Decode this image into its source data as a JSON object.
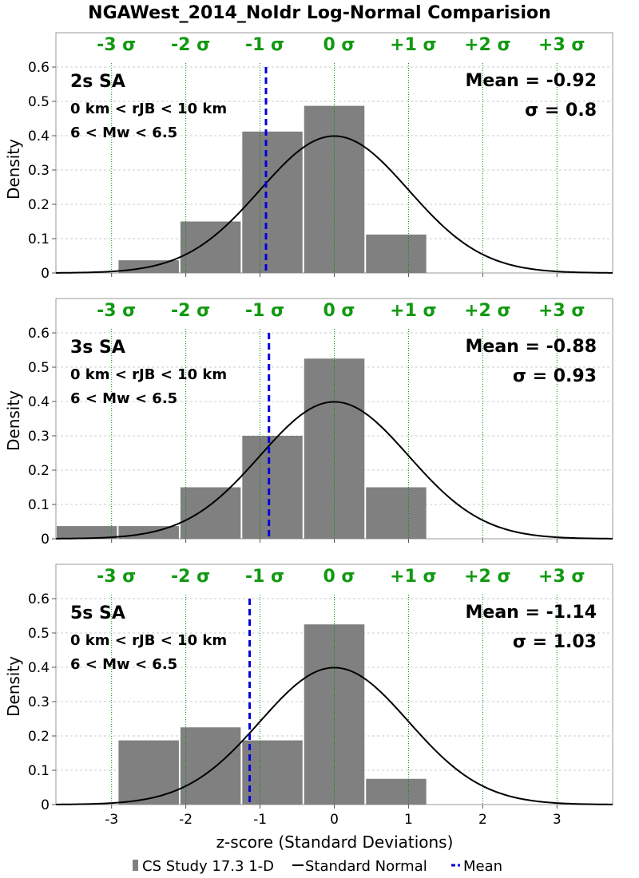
{
  "title": "NGAWest_2014_NoIdr Log-Normal Comparision",
  "xlabel": "z-score (Standard Deviations)",
  "ylabel": "Density",
  "x_ticks": [
    "-3",
    "-2",
    "-1",
    "0",
    "1",
    "2",
    "3"
  ],
  "y_ticks": [
    "0",
    "0.1",
    "0.2",
    "0.3",
    "0.4",
    "0.5",
    "0.6"
  ],
  "sigma_labels": [
    "-3 σ",
    "-2 σ",
    "-1 σ",
    "0 σ",
    "+1 σ",
    "+2 σ",
    "+3 σ"
  ],
  "legend": {
    "histogram": "CS Study 17.3 1-D",
    "normal": "Standard Normal",
    "mean": "Mean"
  },
  "colors": {
    "bar": "#808080",
    "normal_curve": "#000000",
    "mean_line": "#0000dd",
    "sigma_lines": "#008800",
    "sigma_text": "#119911",
    "grid": "#cccccc"
  },
  "panels": [
    {
      "period": "2s SA",
      "distance": "0 km < rJB < 10 km",
      "magnitude": "6 < Mw < 6.5",
      "mean_text": "Mean = -0.92",
      "sigma_text": "σ = 0.8"
    },
    {
      "period": "3s SA",
      "distance": "0 km < rJB < 10 km",
      "magnitude": "6 < Mw < 6.5",
      "mean_text": "Mean = -0.88",
      "sigma_text": "σ = 0.93"
    },
    {
      "period": "5s SA",
      "distance": "0 km < rJB < 10 km",
      "magnitude": "6 < Mw < 6.5",
      "mean_text": "Mean = -1.14",
      "sigma_text": "σ = 1.03"
    }
  ],
  "chart_data": [
    {
      "type": "bar",
      "panel": "2s SA",
      "bin_edges": [
        -3.75,
        -2.917,
        -2.083,
        -1.25,
        -0.417,
        0.417,
        1.25
      ],
      "values": [
        0.0,
        0.037,
        0.15,
        0.412,
        0.487,
        0.112
      ],
      "mean": -0.92,
      "sigma": 0.8,
      "xlim": [
        -3.75,
        3.75
      ],
      "ylim": [
        0,
        0.7
      ],
      "overlay": "standard normal pdf"
    },
    {
      "type": "bar",
      "panel": "3s SA",
      "bin_edges": [
        -3.75,
        -2.917,
        -2.083,
        -1.25,
        -0.417,
        0.417,
        1.25
      ],
      "values": [
        0.037,
        0.037,
        0.15,
        0.3,
        0.525,
        0.15
      ],
      "mean": -0.88,
      "sigma": 0.93,
      "xlim": [
        -3.75,
        3.75
      ],
      "ylim": [
        0,
        0.7
      ],
      "overlay": "standard normal pdf"
    },
    {
      "type": "bar",
      "panel": "5s SA",
      "bin_edges": [
        -3.75,
        -2.917,
        -2.083,
        -1.25,
        -0.417,
        0.417,
        1.25
      ],
      "values": [
        0.0,
        0.187,
        0.225,
        0.187,
        0.525,
        0.075
      ],
      "mean": -1.14,
      "sigma": 1.03,
      "xlim": [
        -3.75,
        3.75
      ],
      "ylim": [
        0,
        0.7
      ],
      "overlay": "standard normal pdf"
    }
  ]
}
